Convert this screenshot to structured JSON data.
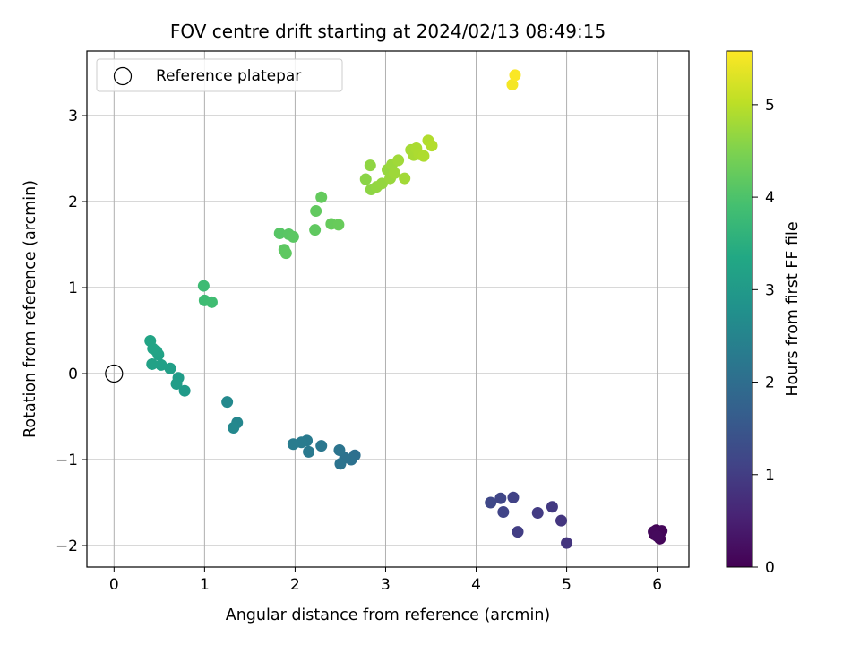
{
  "chart_data": {
    "type": "scatter",
    "title": "FOV centre drift starting at 2024/02/13 08:49:15",
    "xlabel": "Angular distance from reference (arcmin)",
    "ylabel": "Rotation from reference (arcmin)",
    "colorbar_label": "Hours from first FF file",
    "xlim": [
      -0.3,
      6.35
    ],
    "ylim": [
      -2.25,
      3.75
    ],
    "x_ticks": [
      0,
      1,
      2,
      3,
      4,
      5,
      6
    ],
    "y_ticks": [
      -2,
      -1,
      0,
      1,
      2,
      3
    ],
    "colorbar_range": [
      0,
      5.58
    ],
    "colorbar_ticks": [
      0,
      1,
      2,
      3,
      4,
      5
    ],
    "colormap": "viridis",
    "grid": true,
    "legend": {
      "position": "top-left",
      "entries": [
        "Reference platepar"
      ]
    },
    "reference_point": {
      "x": 0,
      "y": 0
    },
    "points": [
      {
        "x": 5.97,
        "y": -1.87,
        "t": 0.02
      },
      {
        "x": 5.99,
        "y": -1.82,
        "t": 0.04
      },
      {
        "x": 6.01,
        "y": -1.86,
        "t": 0.06
      },
      {
        "x": 6.03,
        "y": -1.92,
        "t": 0.08
      },
      {
        "x": 6.05,
        "y": -1.83,
        "t": 0.1
      },
      {
        "x": 5.96,
        "y": -1.84,
        "t": 0.12
      },
      {
        "x": 6.0,
        "y": -1.89,
        "t": 0.14
      },
      {
        "x": 5.0,
        "y": -1.97,
        "t": 0.85
      },
      {
        "x": 4.94,
        "y": -1.71,
        "t": 0.88
      },
      {
        "x": 4.84,
        "y": -1.55,
        "t": 0.92
      },
      {
        "x": 4.68,
        "y": -1.62,
        "t": 0.98
      },
      {
        "x": 4.46,
        "y": -1.84,
        "t": 1.02
      },
      {
        "x": 4.41,
        "y": -1.44,
        "t": 1.08
      },
      {
        "x": 4.3,
        "y": -1.61,
        "t": 1.12
      },
      {
        "x": 4.27,
        "y": -1.45,
        "t": 1.15
      },
      {
        "x": 4.16,
        "y": -1.5,
        "t": 1.2
      },
      {
        "x": 2.66,
        "y": -0.95,
        "t": 2.05
      },
      {
        "x": 2.62,
        "y": -1.0,
        "t": 2.08
      },
      {
        "x": 2.55,
        "y": -0.98,
        "t": 2.1
      },
      {
        "x": 2.5,
        "y": -1.05,
        "t": 2.12
      },
      {
        "x": 2.49,
        "y": -0.89,
        "t": 2.15
      },
      {
        "x": 2.29,
        "y": -0.84,
        "t": 2.2
      },
      {
        "x": 2.15,
        "y": -0.91,
        "t": 2.25
      },
      {
        "x": 2.13,
        "y": -0.78,
        "t": 2.28
      },
      {
        "x": 2.07,
        "y": -0.8,
        "t": 2.3
      },
      {
        "x": 1.98,
        "y": -0.82,
        "t": 2.32
      },
      {
        "x": 1.36,
        "y": -0.57,
        "t": 2.55
      },
      {
        "x": 1.32,
        "y": -0.63,
        "t": 2.58
      },
      {
        "x": 1.25,
        "y": -0.33,
        "t": 2.62
      },
      {
        "x": 0.78,
        "y": -0.2,
        "t": 3.0
      },
      {
        "x": 0.71,
        "y": -0.05,
        "t": 3.05
      },
      {
        "x": 0.69,
        "y": -0.12,
        "t": 3.08
      },
      {
        "x": 0.62,
        "y": 0.06,
        "t": 3.12
      },
      {
        "x": 0.52,
        "y": 0.1,
        "t": 3.15
      },
      {
        "x": 0.42,
        "y": 0.11,
        "t": 3.18
      },
      {
        "x": 0.49,
        "y": 0.22,
        "t": 3.2
      },
      {
        "x": 0.47,
        "y": 0.26,
        "t": 3.22
      },
      {
        "x": 0.43,
        "y": 0.29,
        "t": 3.24
      },
      {
        "x": 0.4,
        "y": 0.38,
        "t": 3.26
      },
      {
        "x": 0.99,
        "y": 1.02,
        "t": 3.8
      },
      {
        "x": 1.0,
        "y": 0.85,
        "t": 3.82
      },
      {
        "x": 1.08,
        "y": 0.83,
        "t": 3.84
      },
      {
        "x": 1.83,
        "y": 1.63,
        "t": 4.1
      },
      {
        "x": 1.93,
        "y": 1.62,
        "t": 4.12
      },
      {
        "x": 1.98,
        "y": 1.59,
        "t": 4.14
      },
      {
        "x": 1.88,
        "y": 1.44,
        "t": 4.16
      },
      {
        "x": 1.9,
        "y": 1.4,
        "t": 4.18
      },
      {
        "x": 2.22,
        "y": 1.67,
        "t": 4.2
      },
      {
        "x": 2.23,
        "y": 1.89,
        "t": 4.22
      },
      {
        "x": 2.29,
        "y": 2.05,
        "t": 4.24
      },
      {
        "x": 2.4,
        "y": 1.74,
        "t": 4.26
      },
      {
        "x": 2.48,
        "y": 1.73,
        "t": 4.28
      },
      {
        "x": 2.78,
        "y": 2.26,
        "t": 4.6
      },
      {
        "x": 2.84,
        "y": 2.14,
        "t": 4.62
      },
      {
        "x": 2.83,
        "y": 2.42,
        "t": 4.64
      },
      {
        "x": 2.9,
        "y": 2.17,
        "t": 4.66
      },
      {
        "x": 2.96,
        "y": 2.21,
        "t": 4.68
      },
      {
        "x": 3.02,
        "y": 2.37,
        "t": 4.7
      },
      {
        "x": 3.05,
        "y": 2.27,
        "t": 4.72
      },
      {
        "x": 3.07,
        "y": 2.43,
        "t": 4.74
      },
      {
        "x": 3.1,
        "y": 2.33,
        "t": 4.76
      },
      {
        "x": 3.14,
        "y": 2.48,
        "t": 4.78
      },
      {
        "x": 3.21,
        "y": 2.27,
        "t": 4.8
      },
      {
        "x": 3.28,
        "y": 2.6,
        "t": 4.82
      },
      {
        "x": 3.31,
        "y": 2.54,
        "t": 4.84
      },
      {
        "x": 3.34,
        "y": 2.62,
        "t": 4.86
      },
      {
        "x": 3.37,
        "y": 2.55,
        "t": 4.88
      },
      {
        "x": 3.42,
        "y": 2.53,
        "t": 4.9
      },
      {
        "x": 3.47,
        "y": 2.71,
        "t": 4.92
      },
      {
        "x": 3.51,
        "y": 2.65,
        "t": 4.94
      },
      {
        "x": 4.4,
        "y": 3.36,
        "t": 5.5
      },
      {
        "x": 4.43,
        "y": 3.47,
        "t": 5.55
      }
    ]
  }
}
